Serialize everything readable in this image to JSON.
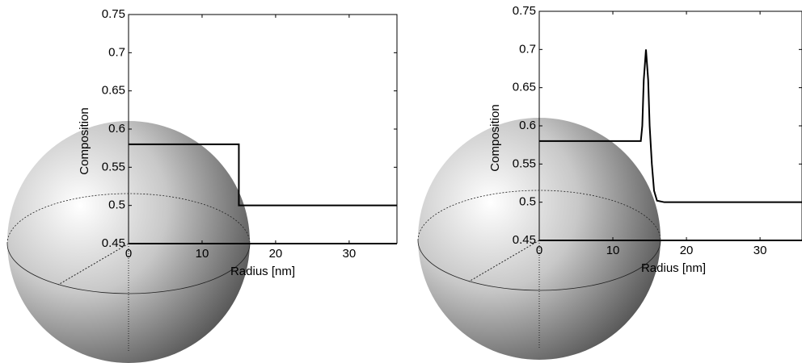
{
  "chart_data": [
    {
      "type": "line",
      "x_label": "Radius [nm]",
      "y_label": "Composition",
      "series": [
        {
          "color": "#000000",
          "x": [
            0,
            15,
            15,
            36.5
          ],
          "values": [
            0.58,
            0.58,
            0.5,
            0.5
          ]
        }
      ],
      "xlim": [
        0,
        36.5
      ],
      "ylim": [
        0.45,
        0.75
      ],
      "xticks": [
        0,
        10,
        20,
        30
      ],
      "yticks": [
        0.45,
        0.5,
        0.55,
        0.6,
        0.65,
        0.7,
        0.75
      ]
    },
    {
      "type": "line",
      "x_label": "Radius [nm]",
      "y_label": "Composition",
      "series": [
        {
          "color": "#000000",
          "x": [
            0,
            13.8,
            14.0,
            14.2,
            14.5,
            14.8,
            15.0,
            15.3,
            15.6,
            16,
            17,
            35.7
          ],
          "values": [
            0.58,
            0.58,
            0.6,
            0.66,
            0.7,
            0.66,
            0.6,
            0.55,
            0.515,
            0.502,
            0.5,
            0.5
          ]
        }
      ],
      "xlim": [
        0,
        35.7
      ],
      "ylim": [
        0.45,
        0.75
      ],
      "xticks": [
        0,
        10,
        20,
        30
      ],
      "yticks": [
        0.45,
        0.5,
        0.55,
        0.6,
        0.65,
        0.7,
        0.75
      ]
    }
  ]
}
